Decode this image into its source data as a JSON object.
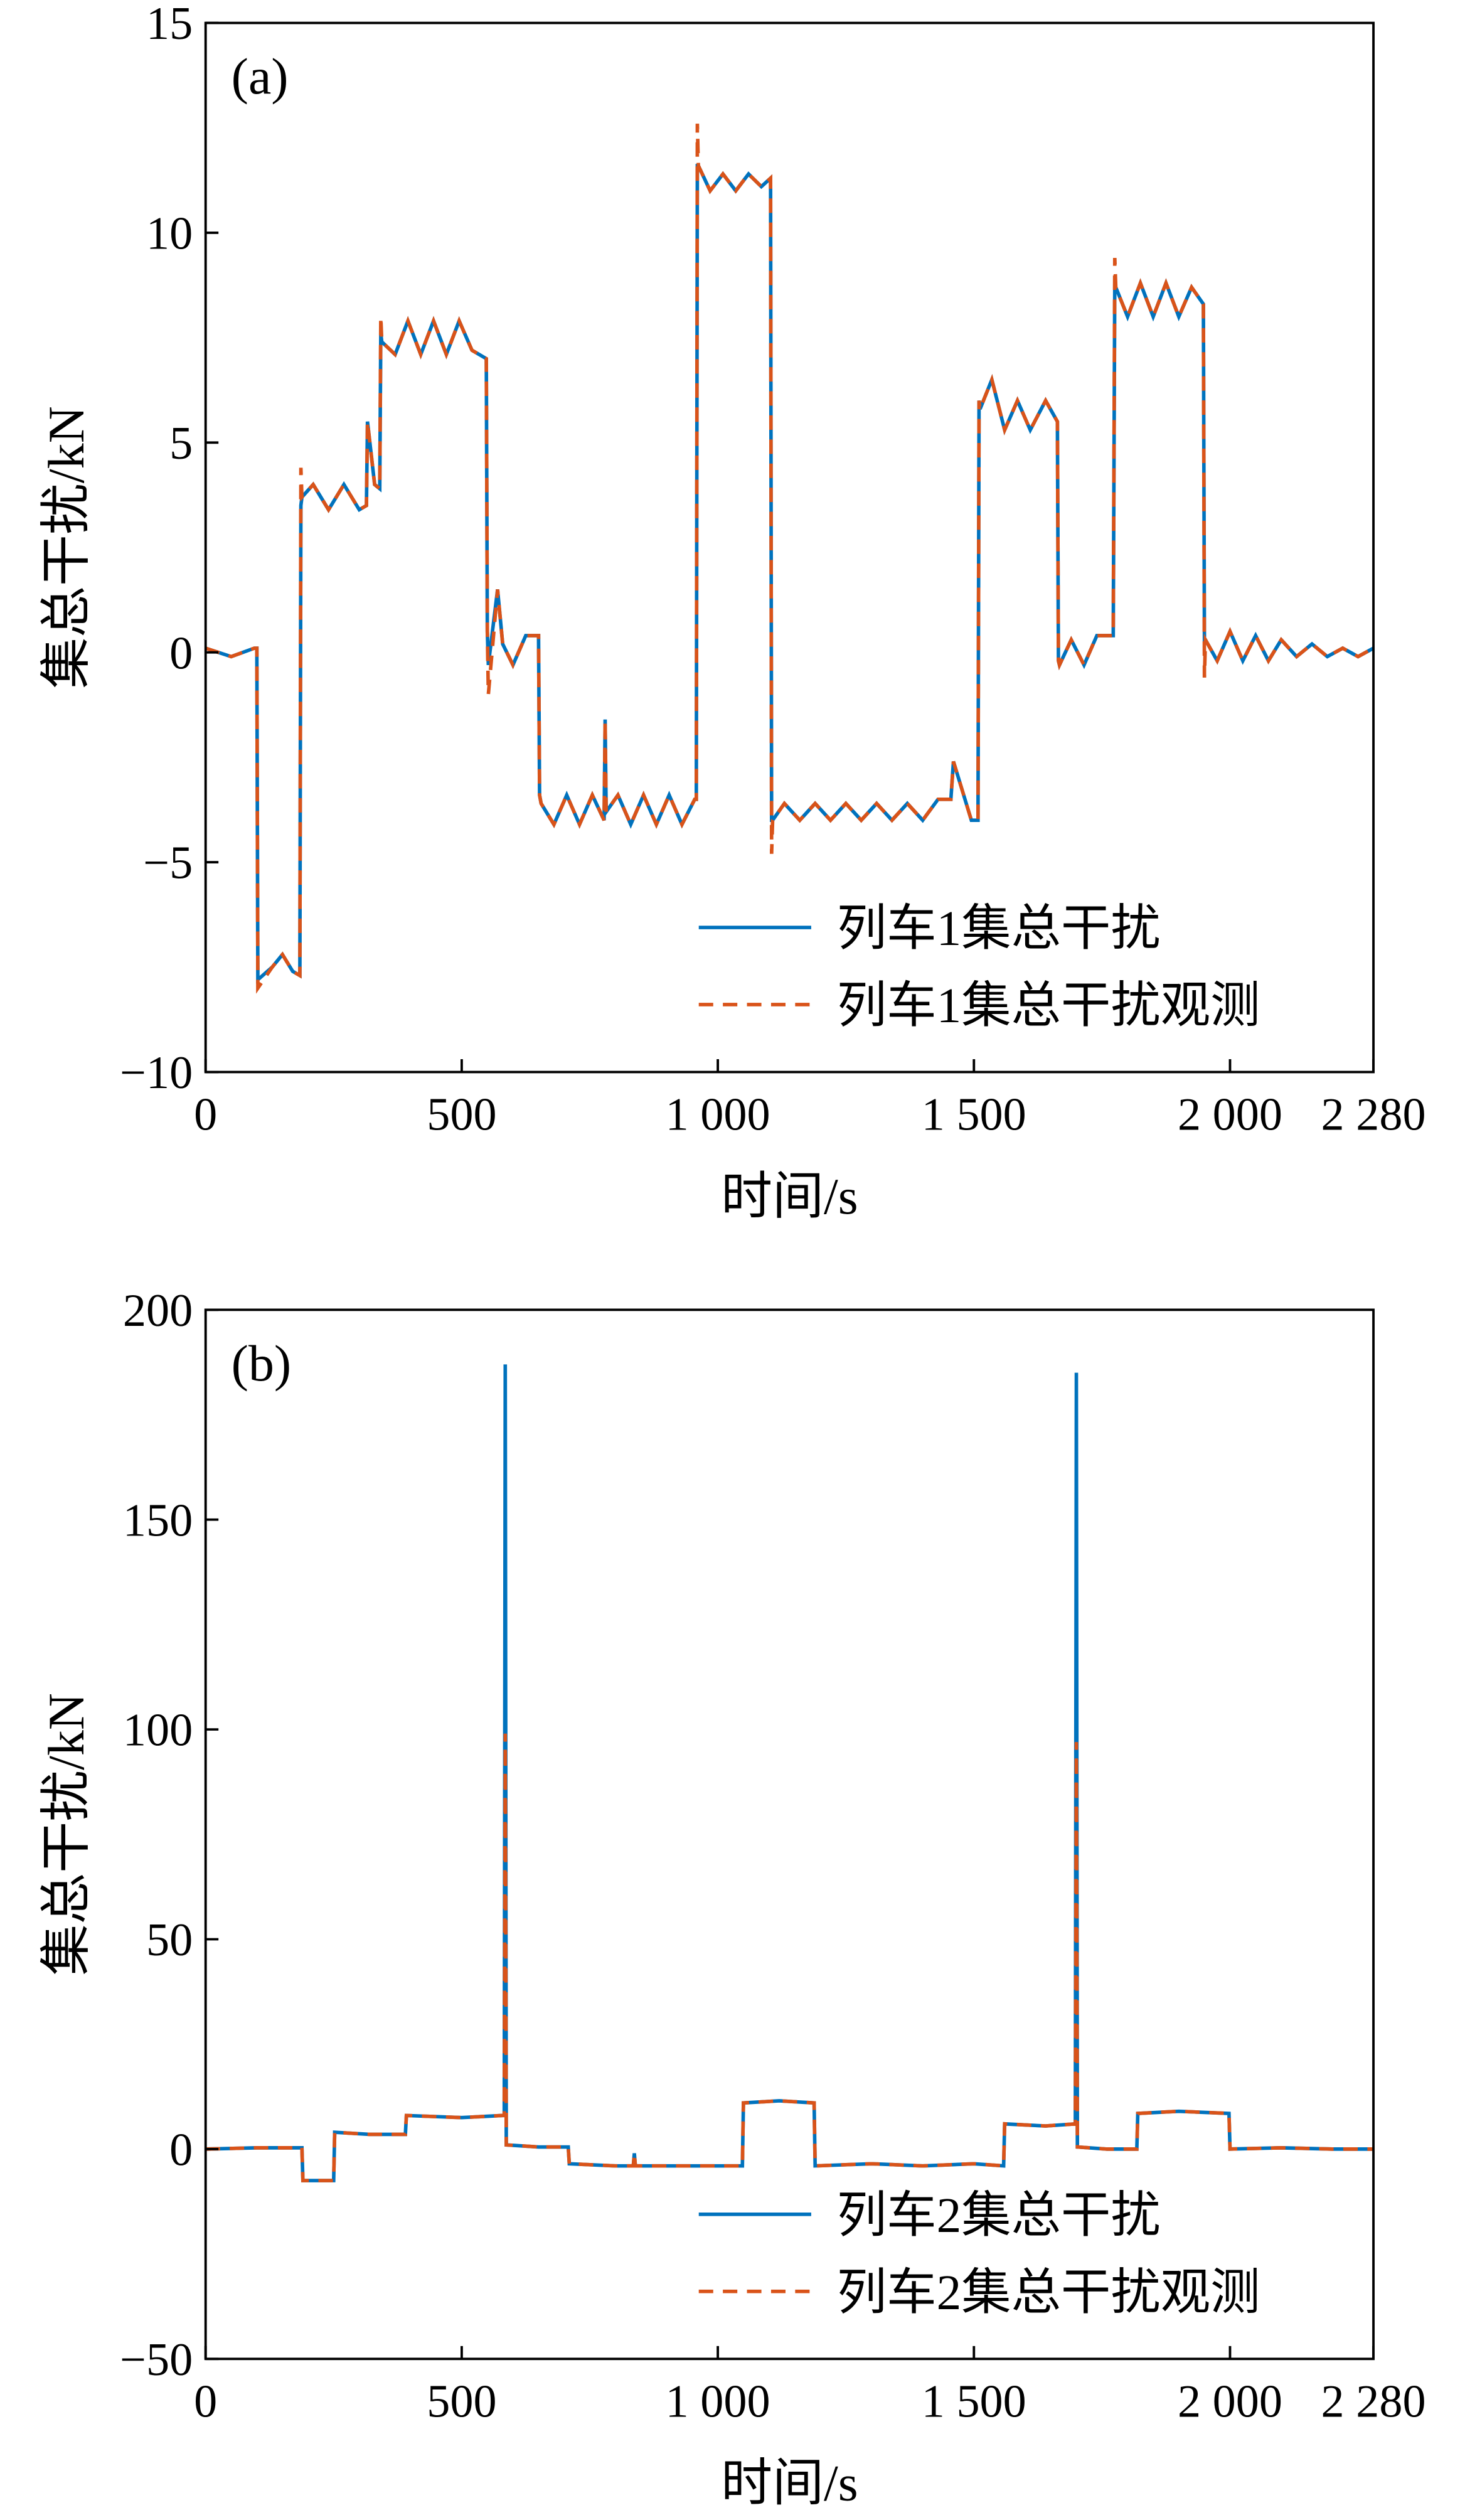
{
  "chart_data": [
    {
      "type": "line",
      "label": "(a)",
      "xlabel": "时间/s",
      "ylabel": "集总干扰/kN",
      "xlim": [
        0,
        2280
      ],
      "xticks": [
        0,
        500,
        {
          "value": 1000,
          "label": "1 000"
        },
        {
          "value": 1500,
          "label": "1 500"
        },
        {
          "value": 2000,
          "label": "2 000"
        },
        {
          "value": 2280,
          "label": "2 280"
        }
      ],
      "ylim": [
        -10,
        15
      ],
      "yticks": [
        {
          "value": -10,
          "label": "−10"
        },
        {
          "value": -5,
          "label": "−5"
        },
        0,
        5,
        10,
        15
      ],
      "legend": "lower right",
      "x": [
        0,
        50,
        95,
        100,
        102,
        130,
        150,
        170,
        184,
        186,
        188,
        210,
        240,
        270,
        300,
        314,
        316,
        330,
        340,
        342,
        344,
        370,
        395,
        420,
        445,
        470,
        495,
        520,
        548,
        550,
        552,
        570,
        580,
        600,
        625,
        650,
        652,
        655,
        680,
        705,
        730,
        755,
        778,
        780,
        782,
        805,
        830,
        855,
        880,
        905,
        930,
        955,
        958,
        960,
        962,
        985,
        1010,
        1035,
        1060,
        1085,
        1103,
        1105,
        1107,
        1130,
        1160,
        1190,
        1220,
        1250,
        1280,
        1310,
        1340,
        1370,
        1400,
        1430,
        1455,
        1460,
        1495,
        1508,
        1510,
        1512,
        1535,
        1560,
        1585,
        1610,
        1640,
        1663,
        1665,
        1667,
        1690,
        1715,
        1740,
        1772,
        1775,
        1777,
        1800,
        1825,
        1850,
        1875,
        1900,
        1925,
        1948,
        1950,
        1952,
        1975,
        2000,
        2025,
        2050,
        2075,
        2100,
        2130,
        2160,
        2190,
        2220,
        2250,
        2280
      ],
      "series": [
        {
          "name": "列车1集总干扰",
          "color": "#0072bd",
          "dash": false,
          "values": [
            0.1,
            -0.1,
            0.1,
            0.1,
            -7.8,
            -7.5,
            -7.2,
            -7.6,
            -7.7,
            3.5,
            3.7,
            4.0,
            3.4,
            4.0,
            3.4,
            3.5,
            5.5,
            4.0,
            3.9,
            7.6,
            7.4,
            7.1,
            7.9,
            7.1,
            7.9,
            7.1,
            7.9,
            7.2,
            7.0,
            0.5,
            -0.3,
            1.5,
            0.2,
            -0.3,
            0.4,
            0.4,
            -3.4,
            -3.6,
            -4.1,
            -3.4,
            -4.1,
            -3.4,
            -4.0,
            -1.6,
            -3.8,
            -3.4,
            -4.1,
            -3.4,
            -4.1,
            -3.4,
            -4.1,
            -3.5,
            -3.5,
            11.6,
            11.6,
            11.0,
            11.4,
            11.0,
            11.4,
            11.1,
            11.3,
            -4.0,
            -4.0,
            -3.6,
            -4.0,
            -3.6,
            -4.0,
            -3.6,
            -4.0,
            -3.6,
            -4.0,
            -3.6,
            -4.0,
            -3.5,
            -3.5,
            -2.6,
            -4.0,
            -4.0,
            6.0,
            5.8,
            6.5,
            5.3,
            6.0,
            5.3,
            6.0,
            5.5,
            -0.2,
            -0.3,
            0.3,
            -0.3,
            0.4,
            0.4,
            8.8,
            8.7,
            8.0,
            8.8,
            8.0,
            8.8,
            8.0,
            8.7,
            8.3,
            0.3,
            0.3,
            -0.2,
            0.5,
            -0.2,
            0.4,
            -0.2,
            0.3,
            -0.1,
            0.2,
            -0.1,
            0.1,
            -0.1,
            0.1
          ]
        },
        {
          "name": "列车1集总干扰观测",
          "color": "#d95319",
          "dash": true,
          "values": [
            0.1,
            -0.1,
            0.1,
            0.1,
            -8.0,
            -7.5,
            -7.2,
            -7.6,
            -7.7,
            4.4,
            3.7,
            4.0,
            3.4,
            4.0,
            3.4,
            3.5,
            5.5,
            4.0,
            3.9,
            8.0,
            7.4,
            7.1,
            7.9,
            7.1,
            7.9,
            7.1,
            7.9,
            7.2,
            7.0,
            0.5,
            -1.0,
            1.5,
            0.2,
            -0.3,
            0.4,
            0.4,
            -3.4,
            -3.6,
            -4.1,
            -3.4,
            -4.1,
            -3.4,
            -4.0,
            -1.6,
            -3.8,
            -3.4,
            -4.1,
            -3.4,
            -4.1,
            -3.4,
            -4.1,
            -3.5,
            -3.5,
            12.6,
            11.6,
            11.0,
            11.4,
            11.0,
            11.4,
            11.1,
            11.3,
            -4.8,
            -4.0,
            -3.6,
            -4.0,
            -3.6,
            -4.0,
            -3.6,
            -4.0,
            -3.6,
            -4.0,
            -3.6,
            -4.0,
            -3.5,
            -3.5,
            -2.6,
            -4.0,
            -4.0,
            6.0,
            5.8,
            6.5,
            5.3,
            6.0,
            5.3,
            6.0,
            5.5,
            -0.2,
            -0.3,
            0.3,
            -0.3,
            0.4,
            0.4,
            9.4,
            8.7,
            8.0,
            8.8,
            8.0,
            8.8,
            8.0,
            8.7,
            8.3,
            -0.6,
            0.3,
            -0.2,
            0.5,
            -0.2,
            0.4,
            -0.2,
            0.3,
            -0.1,
            0.2,
            -0.1,
            0.1,
            -0.1,
            0.1
          ]
        }
      ]
    },
    {
      "type": "line",
      "label": "(b)",
      "xlabel": "时间/s",
      "ylabel": "集总干扰/kN",
      "xlim": [
        0,
        2280
      ],
      "xticks": [
        0,
        500,
        {
          "value": 1000,
          "label": "1 000"
        },
        {
          "value": 1500,
          "label": "1 500"
        },
        {
          "value": 2000,
          "label": "2 000"
        },
        {
          "value": 2280,
          "label": "2 280"
        }
      ],
      "ylim": [
        -50,
        200
      ],
      "yticks": [
        {
          "value": -50,
          "label": "−50"
        },
        0,
        50,
        100,
        150,
        200
      ],
      "legend": "lower right",
      "x": [
        0,
        100,
        188,
        190,
        250,
        252,
        320,
        390,
        392,
        500,
        580,
        583,
        585,
        587,
        650,
        708,
        710,
        800,
        835,
        837,
        839,
        900,
        1000,
        1048,
        1050,
        1120,
        1188,
        1190,
        1300,
        1400,
        1500,
        1558,
        1560,
        1640,
        1698,
        1700,
        1702,
        1760,
        1818,
        1820,
        1900,
        1998,
        2000,
        2100,
        2200,
        2280
      ],
      "series": [
        {
          "name": "列车2集总干扰",
          "color": "#0072bd",
          "dash": false,
          "values": [
            0,
            0.3,
            0.3,
            -7.5,
            -7.5,
            4,
            3.5,
            3.5,
            8,
            7.5,
            8,
            8,
            187,
            1,
            0.5,
            0.5,
            -3.5,
            -4,
            -4,
            -1,
            -4,
            -4,
            -4,
            -4,
            11,
            11.5,
            11,
            -4,
            -3.5,
            -4,
            -3.5,
            -4,
            6,
            5.5,
            6,
            185,
            0.5,
            0,
            0,
            8.5,
            9,
            8.5,
            0,
            0.3,
            0,
            0
          ]
        },
        {
          "name": "列车2集总干扰观测",
          "color": "#d95319",
          "dash": true,
          "values": [
            0,
            0.3,
            0.3,
            -7.5,
            -7.5,
            4,
            3.5,
            3.5,
            8,
            7.5,
            8,
            8,
            99,
            1,
            0.5,
            0.5,
            -3.5,
            -4,
            -4,
            -1,
            -4,
            -4,
            -4,
            -4,
            11,
            11.5,
            11,
            -4,
            -3.5,
            -4,
            -3.5,
            -4,
            6,
            5.5,
            6,
            97,
            0.5,
            0,
            0,
            8.5,
            9,
            8.5,
            0,
            0.3,
            0,
            0
          ]
        }
      ]
    }
  ]
}
